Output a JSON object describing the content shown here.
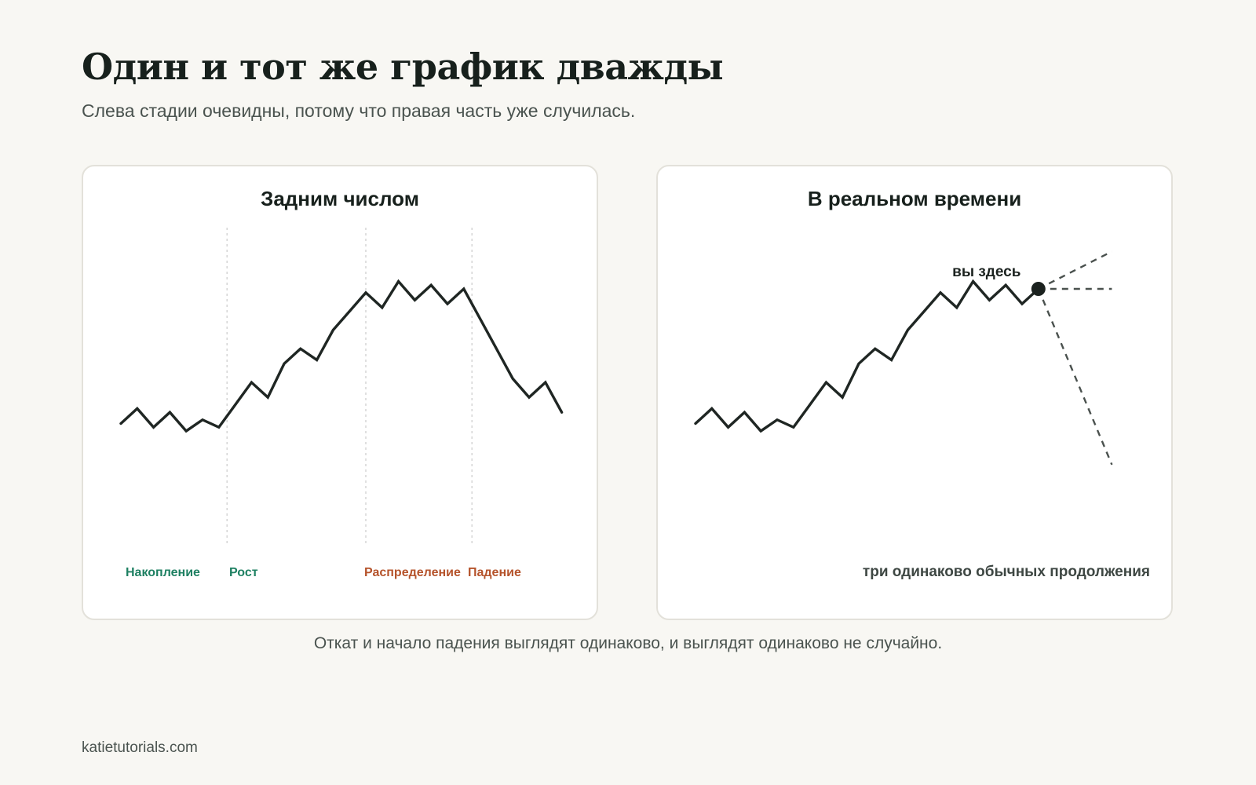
{
  "header": {
    "title": "Один и тот же график дважды",
    "subtitle": "Слева стадии очевидны, потому что правая часть уже случилась."
  },
  "chart_data": [
    {
      "type": "line",
      "title": "Задним числом",
      "axes_visible": false,
      "grid": false,
      "x": [
        0,
        1,
        2,
        3,
        4,
        5,
        6,
        7,
        8,
        9,
        10,
        11,
        12,
        13,
        14,
        15,
        16,
        17,
        18,
        19,
        20,
        21,
        22,
        23,
        24,
        25,
        26,
        27
      ],
      "values": [
        52,
        56,
        51,
        55,
        50,
        53,
        51,
        57,
        63,
        59,
        68,
        72,
        69,
        77,
        82,
        87,
        83,
        90,
        85,
        89,
        84,
        88,
        80,
        72,
        64,
        59,
        63,
        55
      ],
      "ylim": [
        20,
        105
      ],
      "line_color": "#1f2623",
      "stage_boundaries": [
        6.5,
        15,
        21.5
      ],
      "stages": [
        {
          "label": "Накопление",
          "color": "#1e8062"
        },
        {
          "label": "Рост",
          "color": "#1e8062"
        },
        {
          "label": "Распределение",
          "color": "#b5532b"
        },
        {
          "label": "Падение",
          "color": "#b5532b"
        }
      ]
    },
    {
      "type": "line",
      "title": "В реальном времени",
      "axes_visible": false,
      "grid": false,
      "x": [
        0,
        1,
        2,
        3,
        4,
        5,
        6,
        7,
        8,
        9,
        10,
        11,
        12,
        13,
        14,
        15,
        16,
        17,
        18,
        19,
        20,
        21
      ],
      "values": [
        52,
        56,
        51,
        55,
        50,
        53,
        51,
        57,
        63,
        59,
        68,
        72,
        69,
        77,
        82,
        87,
        83,
        90,
        85,
        89,
        84,
        88
      ],
      "ylim": [
        20,
        105
      ],
      "line_color": "#1f2623",
      "marker": {
        "x": 21,
        "label": "вы здесь"
      },
      "continuations": [
        {
          "x": [
            21,
            25.5
          ],
          "values": [
            88,
            98
          ]
        },
        {
          "x": [
            21,
            25.5
          ],
          "values": [
            88,
            88
          ]
        },
        {
          "x": [
            21,
            25.5
          ],
          "values": [
            88,
            41
          ]
        }
      ],
      "annotation": "три одинаково обычных продолжения"
    }
  ],
  "caption": "Откат и начало падения выглядят одинаково, и выглядят одинаково не случайно.",
  "footer": "katietutorials.com",
  "colors": {
    "background": "#f8f7f3",
    "card": "#ffffff",
    "line": "#1f2623",
    "green_stage": "#1e8062",
    "red_stage": "#b5532b",
    "dashed": "#4a514e",
    "guide": "#cfcfcf"
  }
}
